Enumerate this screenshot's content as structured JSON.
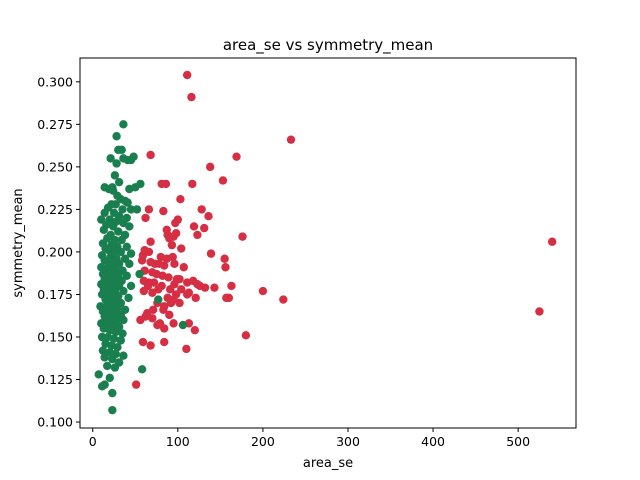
{
  "chart_data": {
    "type": "scatter",
    "title": "area_se vs symmetry_mean",
    "xlabel": "area_se",
    "ylabel": "symmetry_mean",
    "xlim": [
      -15,
      568
    ],
    "ylim": [
      0.0965,
      0.314
    ],
    "xticks": [
      0,
      100,
      200,
      300,
      400,
      500
    ],
    "xtick_labels": [
      "0",
      "100",
      "200",
      "300",
      "400",
      "500"
    ],
    "yticks": [
      0.1,
      0.125,
      0.15,
      0.175,
      0.2,
      0.225,
      0.25,
      0.275,
      0.3
    ],
    "ytick_labels": [
      "0.100",
      "0.125",
      "0.150",
      "0.175",
      "0.200",
      "0.225",
      "0.250",
      "0.275",
      "0.300"
    ],
    "grid": false,
    "legend": "none",
    "series": [
      {
        "color": "#d62f44",
        "points": [
          [
            111,
            0.304
          ],
          [
            116,
            0.291
          ],
          [
            233,
            0.266
          ],
          [
            68,
            0.257
          ],
          [
            169,
            0.256
          ],
          [
            138,
            0.25
          ],
          [
            153,
            0.242
          ],
          [
            81,
            0.24
          ],
          [
            86,
            0.24
          ],
          [
            117,
            0.24
          ],
          [
            103,
            0.231
          ],
          [
            128,
            0.225
          ],
          [
            66,
            0.225
          ],
          [
            83,
            0.224
          ],
          [
            136,
            0.221
          ],
          [
            62,
            0.22
          ],
          [
            100,
            0.219
          ],
          [
            97,
            0.217
          ],
          [
            119,
            0.215
          ],
          [
            131,
            0.214
          ],
          [
            87,
            0.213
          ],
          [
            98,
            0.211
          ],
          [
            88,
            0.21
          ],
          [
            123,
            0.21
          ],
          [
            95,
            0.209
          ],
          [
            176,
            0.209
          ],
          [
            90,
            0.208
          ],
          [
            68,
            0.206
          ],
          [
            93,
            0.204
          ],
          [
            104,
            0.202
          ],
          [
            61,
            0.201
          ],
          [
            66,
            0.2
          ],
          [
            540,
            0.206
          ],
          [
            139,
            0.199
          ],
          [
            59,
            0.198
          ],
          [
            80,
            0.197
          ],
          [
            87,
            0.196
          ],
          [
            94,
            0.197
          ],
          [
            155,
            0.196
          ],
          [
            58,
            0.195
          ],
          [
            68,
            0.194
          ],
          [
            73,
            0.193
          ],
          [
            78,
            0.193
          ],
          [
            84,
            0.192
          ],
          [
            96,
            0.193
          ],
          [
            107,
            0.191
          ],
          [
            156,
            0.191
          ],
          [
            61,
            0.189
          ],
          [
            70,
            0.188
          ],
          [
            75,
            0.187
          ],
          [
            82,
            0.186
          ],
          [
            89,
            0.185
          ],
          [
            99,
            0.184
          ],
          [
            102,
            0.184
          ],
          [
            60,
            0.183
          ],
          [
            66,
            0.182
          ],
          [
            72,
            0.182
          ],
          [
            96,
            0.181
          ],
          [
            111,
            0.182
          ],
          [
            118,
            0.183
          ],
          [
            123,
            0.181
          ],
          [
            65,
            0.18
          ],
          [
            81,
            0.18
          ],
          [
            126,
            0.18
          ],
          [
            132,
            0.179
          ],
          [
            163,
            0.18
          ],
          [
            77,
            0.178
          ],
          [
            91,
            0.178
          ],
          [
            104,
            0.178
          ],
          [
            113,
            0.176
          ],
          [
            143,
            0.179
          ],
          [
            60,
            0.177
          ],
          [
            70,
            0.176
          ],
          [
            98,
            0.175
          ],
          [
            111,
            0.175
          ],
          [
            200,
            0.177
          ],
          [
            88,
            0.173
          ],
          [
            95,
            0.172
          ],
          [
            121,
            0.173
          ],
          [
            157,
            0.173
          ],
          [
            160,
            0.173
          ],
          [
            224,
            0.172
          ],
          [
            76,
            0.17
          ],
          [
            84,
            0.168
          ],
          [
            92,
            0.17
          ],
          [
            102,
            0.17
          ],
          [
            71,
            0.166
          ],
          [
            83,
            0.166
          ],
          [
            64,
            0.164
          ],
          [
            525,
            0.165
          ],
          [
            90,
            0.163
          ],
          [
            62,
            0.162
          ],
          [
            70,
            0.161
          ],
          [
            56,
            0.16
          ],
          [
            79,
            0.158
          ],
          [
            95,
            0.158
          ],
          [
            113,
            0.158
          ],
          [
            76,
            0.157
          ],
          [
            84,
            0.155
          ],
          [
            120,
            0.154
          ],
          [
            180,
            0.151
          ],
          [
            59,
            0.147
          ],
          [
            68,
            0.145
          ],
          [
            84,
            0.147
          ],
          [
            110,
            0.143
          ],
          [
            51,
            0.122
          ]
        ]
      },
      {
        "color": "#1a7f4e",
        "points": [
          [
            36,
            0.275
          ],
          [
            28,
            0.268
          ],
          [
            30,
            0.26
          ],
          [
            34,
            0.26
          ],
          [
            36,
            0.255
          ],
          [
            41,
            0.254
          ],
          [
            45,
            0.254
          ],
          [
            48,
            0.256
          ],
          [
            21,
            0.255
          ],
          [
            28,
            0.252
          ],
          [
            26,
            0.245
          ],
          [
            31,
            0.241
          ],
          [
            56,
            0.24
          ],
          [
            23,
            0.238
          ],
          [
            14,
            0.238
          ],
          [
            43,
            0.237
          ],
          [
            50,
            0.238
          ],
          [
            19,
            0.237
          ],
          [
            24,
            0.236
          ],
          [
            29,
            0.233
          ],
          [
            33,
            0.231
          ],
          [
            38,
            0.23
          ],
          [
            41,
            0.229
          ],
          [
            22,
            0.228
          ],
          [
            27,
            0.228
          ],
          [
            18,
            0.226
          ],
          [
            35,
            0.225
          ],
          [
            45,
            0.225
          ],
          [
            52,
            0.225
          ],
          [
            25,
            0.223
          ],
          [
            14,
            0.223
          ],
          [
            31,
            0.221
          ],
          [
            40,
            0.22
          ],
          [
            10,
            0.219
          ],
          [
            20,
            0.219
          ],
          [
            28,
            0.218
          ],
          [
            36,
            0.217
          ],
          [
            16,
            0.216
          ],
          [
            24,
            0.215
          ],
          [
            43,
            0.215
          ],
          [
            13,
            0.213
          ],
          [
            30,
            0.212
          ],
          [
            21,
            0.21
          ],
          [
            38,
            0.21
          ],
          [
            17,
            0.208
          ],
          [
            26,
            0.207
          ],
          [
            34,
            0.207
          ],
          [
            12,
            0.205
          ],
          [
            22,
            0.204
          ],
          [
            29,
            0.203
          ],
          [
            40,
            0.203
          ],
          [
            15,
            0.202
          ],
          [
            19,
            0.201
          ],
          [
            25,
            0.2
          ],
          [
            33,
            0.2
          ],
          [
            45,
            0.199
          ],
          [
            11,
            0.198
          ],
          [
            21,
            0.197
          ],
          [
            28,
            0.196
          ],
          [
            38,
            0.196
          ],
          [
            14,
            0.195
          ],
          [
            18,
            0.194
          ],
          [
            24,
            0.193
          ],
          [
            31,
            0.193
          ],
          [
            43,
            0.193
          ],
          [
            10,
            0.191
          ],
          [
            16,
            0.19
          ],
          [
            22,
            0.19
          ],
          [
            27,
            0.189
          ],
          [
            35,
            0.189
          ],
          [
            12,
            0.187
          ],
          [
            19,
            0.187
          ],
          [
            25,
            0.186
          ],
          [
            30,
            0.186
          ],
          [
            40,
            0.186
          ],
          [
            55,
            0.187
          ],
          [
            14,
            0.184
          ],
          [
            21,
            0.184
          ],
          [
            28,
            0.183
          ],
          [
            34,
            0.183
          ],
          [
            10,
            0.181
          ],
          [
            17,
            0.181
          ],
          [
            24,
            0.18
          ],
          [
            31,
            0.18
          ],
          [
            45,
            0.18
          ],
          [
            13,
            0.178
          ],
          [
            20,
            0.178
          ],
          [
            26,
            0.177
          ],
          [
            36,
            0.177
          ],
          [
            11,
            0.175
          ],
          [
            18,
            0.175
          ],
          [
            23,
            0.174
          ],
          [
            30,
            0.174
          ],
          [
            42,
            0.173
          ],
          [
            77,
            0.172
          ],
          [
            15,
            0.172
          ],
          [
            21,
            0.171
          ],
          [
            27,
            0.17
          ],
          [
            33,
            0.17
          ],
          [
            9,
            0.168
          ],
          [
            16,
            0.168
          ],
          [
            23,
            0.167
          ],
          [
            29,
            0.167
          ],
          [
            38,
            0.166
          ],
          [
            12,
            0.165
          ],
          [
            19,
            0.164
          ],
          [
            26,
            0.164
          ],
          [
            33,
            0.163
          ],
          [
            14,
            0.162
          ],
          [
            21,
            0.161
          ],
          [
            28,
            0.16
          ],
          [
            36,
            0.16
          ],
          [
            10,
            0.158
          ],
          [
            17,
            0.158
          ],
          [
            24,
            0.157
          ],
          [
            31,
            0.156
          ],
          [
            106,
            0.157
          ],
          [
            13,
            0.155
          ],
          [
            20,
            0.154
          ],
          [
            27,
            0.153
          ],
          [
            35,
            0.152
          ],
          [
            11,
            0.15
          ],
          [
            18,
            0.15
          ],
          [
            25,
            0.149
          ],
          [
            33,
            0.148
          ],
          [
            15,
            0.146
          ],
          [
            22,
            0.145
          ],
          [
            29,
            0.144
          ],
          [
            12,
            0.142
          ],
          [
            20,
            0.141
          ],
          [
            27,
            0.14
          ],
          [
            36,
            0.139
          ],
          [
            14,
            0.138
          ],
          [
            23,
            0.137
          ],
          [
            31,
            0.135
          ],
          [
            17,
            0.133
          ],
          [
            26,
            0.132
          ],
          [
            58,
            0.131
          ],
          [
            7,
            0.128
          ],
          [
            20,
            0.126
          ],
          [
            11,
            0.121
          ],
          [
            14,
            0.122
          ],
          [
            23,
            0.117
          ],
          [
            23,
            0.107
          ]
        ]
      }
    ]
  }
}
